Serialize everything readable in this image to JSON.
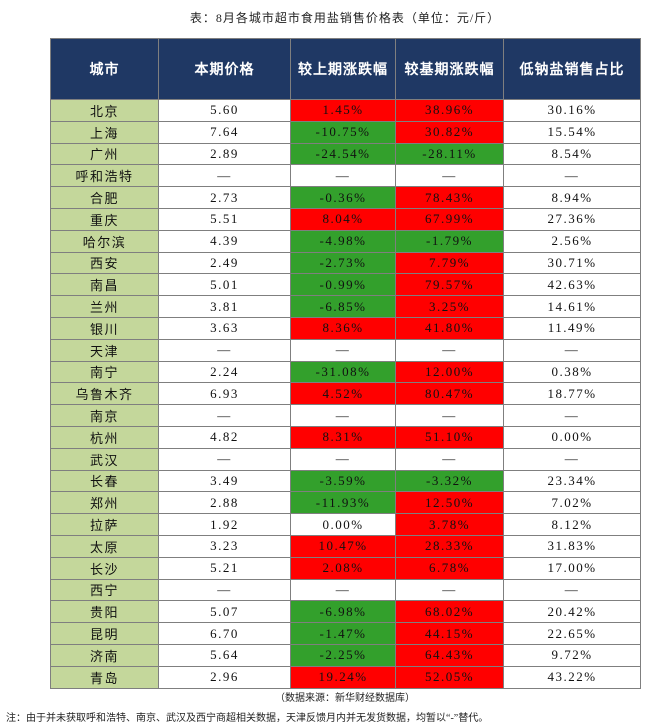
{
  "title": "表：8月各城市超市食用盐销售价格表（单位：元/斤）",
  "table": {
    "header": [
      "城市",
      "本期价格",
      "较上期涨跌幅",
      "较基期涨跌幅",
      "低钠盐销售占比"
    ],
    "rows": [
      [
        "北京",
        "5.60",
        "1.45%",
        "38.96%",
        "30.16%"
      ],
      [
        "上海",
        "7.64",
        "-10.75%",
        "30.82%",
        "15.54%"
      ],
      [
        "广州",
        "2.89",
        "-24.54%",
        "-28.11%",
        "8.54%"
      ],
      [
        "呼和浩特",
        "—",
        "—",
        "—",
        "—"
      ],
      [
        "合肥",
        "2.73",
        "-0.36%",
        "78.43%",
        "8.94%"
      ],
      [
        "重庆",
        "5.51",
        "8.04%",
        "67.99%",
        "27.36%"
      ],
      [
        "哈尔滨",
        "4.39",
        "-4.98%",
        "-1.79%",
        "2.56%"
      ],
      [
        "西安",
        "2.49",
        "-2.73%",
        "7.79%",
        "30.71%"
      ],
      [
        "南昌",
        "5.01",
        "-0.99%",
        "79.57%",
        "42.63%"
      ],
      [
        "兰州",
        "3.81",
        "-6.85%",
        "3.25%",
        "14.61%"
      ],
      [
        "银川",
        "3.63",
        "8.36%",
        "41.80%",
        "11.49%"
      ],
      [
        "天津",
        "—",
        "—",
        "—",
        "—"
      ],
      [
        "南宁",
        "2.24",
        "-31.08%",
        "12.00%",
        "0.38%"
      ],
      [
        "乌鲁木齐",
        "6.93",
        "4.52%",
        "80.47%",
        "18.77%"
      ],
      [
        "南京",
        "—",
        "—",
        "—",
        "—"
      ],
      [
        "杭州",
        "4.82",
        "8.31%",
        "51.10%",
        "0.00%"
      ],
      [
        "武汉",
        "—",
        "—",
        "—",
        "—"
      ],
      [
        "长春",
        "3.49",
        "-3.59%",
        "-3.32%",
        "23.34%"
      ],
      [
        "郑州",
        "2.88",
        "-11.93%",
        "12.50%",
        "7.02%"
      ],
      [
        "拉萨",
        "1.92",
        "0.00%",
        "3.78%",
        "8.12%"
      ],
      [
        "太原",
        "3.23",
        "10.47%",
        "28.33%",
        "31.83%"
      ],
      [
        "长沙",
        "5.21",
        "2.08%",
        "6.78%",
        "17.00%"
      ],
      [
        "西宁",
        "—",
        "—",
        "—",
        "—"
      ],
      [
        "贵阳",
        "5.07",
        "-6.98%",
        "68.02%",
        "20.42%"
      ],
      [
        "昆明",
        "6.70",
        "-1.47%",
        "44.15%",
        "22.65%"
      ],
      [
        "济南",
        "5.64",
        "-2.25%",
        "64.43%",
        "9.72%"
      ],
      [
        "青岛",
        "2.96",
        "19.24%",
        "52.05%",
        "43.22%"
      ]
    ]
  },
  "source": "（数据来源：新华财经数据库）",
  "note": "注：由于并未获取呼和浩特、南京、武汉及西宁商超相关数据，天津反馈月内并无发货数据，均暂以“-”替代。"
}
